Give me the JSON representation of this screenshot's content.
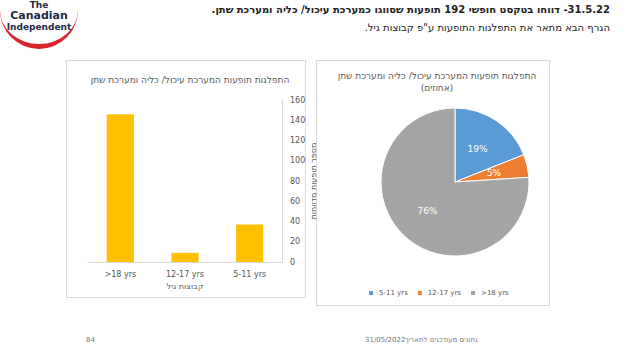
{
  "slide": {
    "logo": [
      "The",
      "Canadian",
      "Independent"
    ],
    "header": [
      "31.5.22- דווחו בטקסט חופשי 192 תופעות שסווגו כמערכת עיכול/ כליה ומערכת שתן.",
      "הגרף הבא מתאר את התפלגות התופעות ע\"פ קבוצות גיל."
    ],
    "page_number": "84",
    "footer": {
      "date": "31/05/2022",
      "label": "נתונים מעודכנים לתאריך"
    }
  },
  "chart_data": [
    {
      "type": "bar",
      "title": "התפלגות תופעות המערכת עיכול/ כליה ומערכת שתן",
      "categories": [
        ">18 yrs",
        "12-17 yrs",
        "5-11 yrs"
      ],
      "values": [
        146,
        9,
        37
      ],
      "color": "#ffc000",
      "x_label": "קבוצות גיל",
      "y_label": "מספר תופעות מדווחות",
      "ylim": [
        0,
        160
      ],
      "yticks": [
        0,
        20,
        40,
        60,
        80,
        100,
        120,
        140,
        160
      ],
      "grid": false
    },
    {
      "type": "pie",
      "title": "התפלגות תופעות המערכת עיכול/ כליה ומערכת שתן",
      "subtitle": "(אחוזים)",
      "categories": [
        "5-11 yrs",
        "12-17 yrs",
        ">18 yrs"
      ],
      "values": [
        19,
        5,
        76
      ],
      "value_labels": [
        "19%",
        "5%",
        "76%"
      ],
      "colors": [
        "#5b9bd5",
        "#ed7d31",
        "#a5a5a5"
      ],
      "data_labels": true,
      "legend": "bottom"
    }
  ]
}
